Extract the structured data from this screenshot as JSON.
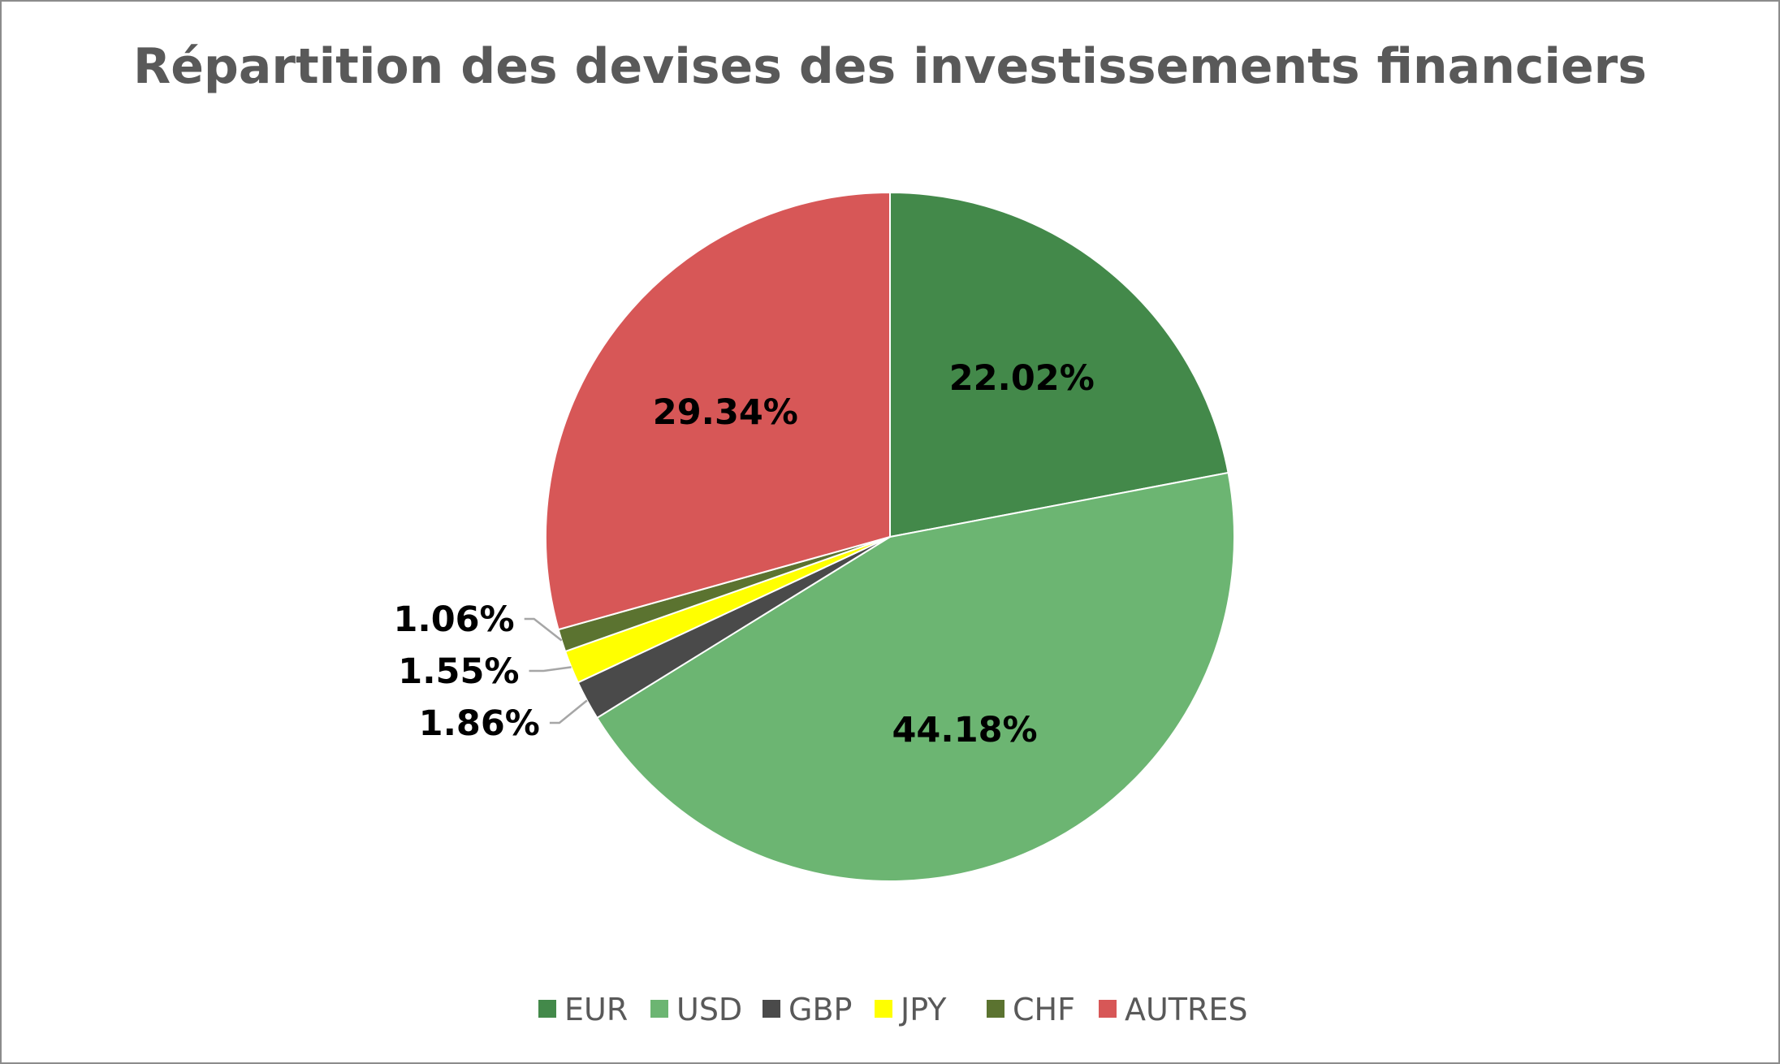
{
  "chart_data": {
    "type": "pie",
    "title": "Répartition des devises des investissements financiers",
    "start_angle_deg": 0,
    "direction": "clockwise",
    "legend_position": "bottom",
    "slices": [
      {
        "name": "EUR",
        "value": 22.02,
        "label": "22.02%",
        "color": "#43894a",
        "label_placement": "inside"
      },
      {
        "name": "USD",
        "value": 44.18,
        "label": "44.18%",
        "color": "#6cb572",
        "label_placement": "inside"
      },
      {
        "name": "GBP",
        "value": 1.86,
        "label": "1.86%",
        "color": "#4a4a4a",
        "label_placement": "outside"
      },
      {
        "name": "JPY",
        "value": 1.55,
        "label": "1.55%",
        "color": "#ffff00",
        "label_placement": "outside"
      },
      {
        "name": "CHF",
        "value": 1.06,
        "label": "1.06%",
        "color": "#5b7330",
        "label_placement": "outside"
      },
      {
        "name": "AUTRES",
        "value": 29.34,
        "label": "29.34%",
        "color": "#d75757",
        "label_placement": "inside"
      }
    ]
  }
}
